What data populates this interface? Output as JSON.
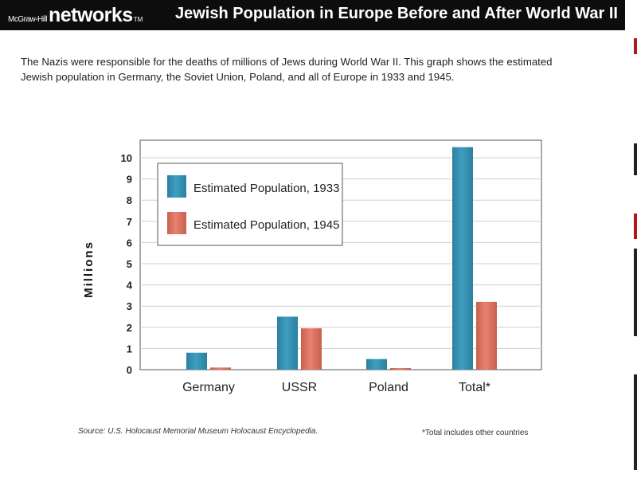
{
  "header": {
    "brand_small": "McGraw-Hill",
    "brand_large": "networks",
    "brand_tm": "TM",
    "title": "Jewish Population in Europe Before and After World War II"
  },
  "intro": "The Nazis were responsible for the deaths of millions of Jews during World War II. This graph shows the estimated Jewish population in Germany, the Soviet Union, Poland, and all of Europe in 1933 and 1945.",
  "source": "Source: U.S. Holocaust Memorial Museum Holocaust Encyclopedia.",
  "footnote": "*Total includes other countries",
  "colors": {
    "series_1933": "#3e9fc0",
    "series_1945": "#e6826f",
    "banner": "#0d0d0d"
  },
  "chart_data": {
    "type": "bar",
    "title": "",
    "xlabel": "",
    "ylabel": "Millions",
    "ylim": [
      0,
      10.5
    ],
    "yticks": [
      "0",
      "1",
      "2",
      "3",
      "4",
      "5",
      "6",
      "7",
      "8",
      "9",
      "10"
    ],
    "categories": [
      "Germany",
      "USSR",
      "Poland",
      "Total*"
    ],
    "series": [
      {
        "name": "Estimated Population, 1933",
        "values": [
          0.8,
          2.5,
          0.5,
          10.5
        ]
      },
      {
        "name": "Estimated Population, 1945",
        "values": [
          0.1,
          1.95,
          0.05,
          3.2
        ]
      }
    ],
    "legend": "top-left",
    "grid": true
  }
}
